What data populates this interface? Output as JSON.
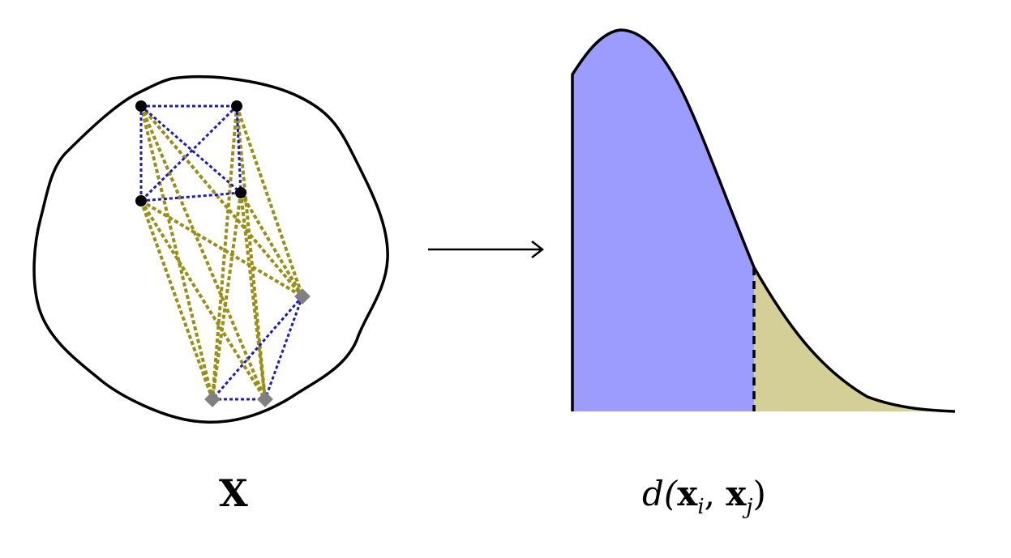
{
  "left_panel": {
    "label": "X",
    "colors": {
      "within_cluster_edge": "#1a1acc",
      "between_cluster_edge": "#9a8f10",
      "circle_node": "#000000",
      "diamond_node": "#808080",
      "outline": "#000000"
    },
    "cluster_a": {
      "node_shape": "circle",
      "node_count": 4
    },
    "cluster_b": {
      "node_shape": "diamond",
      "node_count": 3
    }
  },
  "arrow": {
    "direction": "right"
  },
  "right_panel": {
    "label": {
      "d": "d(",
      "x1": "x",
      "i": "i",
      "comma": ", ",
      "x2": "x",
      "j": "j",
      "close": ")"
    },
    "colors": {
      "left_region": "#9b9cfd",
      "right_region": "#d3cf96",
      "curve": "#000000",
      "split_line": "#000000"
    }
  }
}
